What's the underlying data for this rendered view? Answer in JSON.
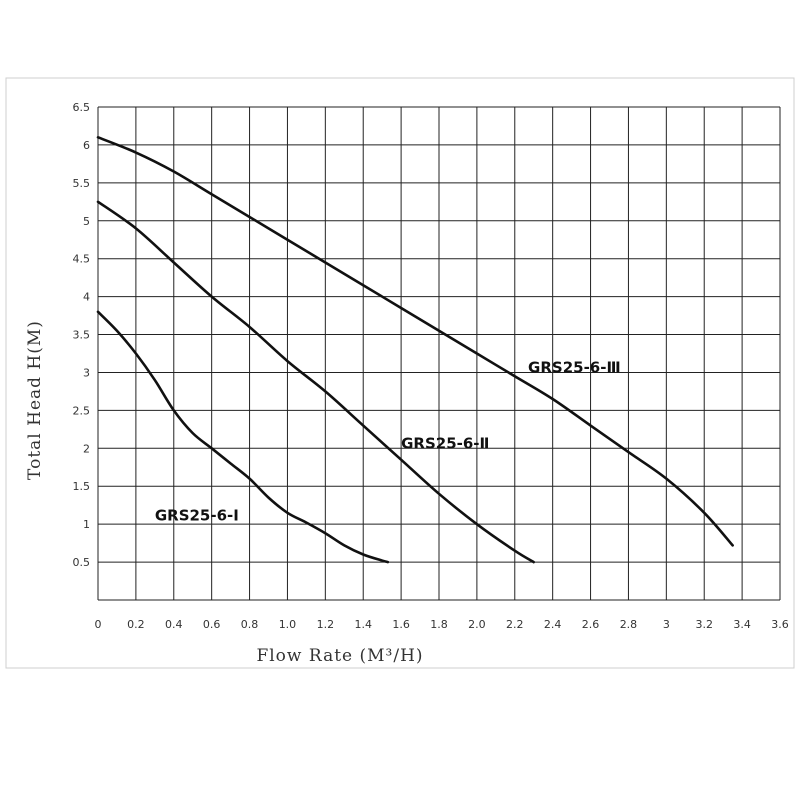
{
  "chart_data": {
    "type": "line",
    "title": "",
    "xlabel": "Flow Rate (M³/H)",
    "ylabel": "Total Head H(M)",
    "xlim": [
      0,
      3.6
    ],
    "ylim": [
      0,
      6.5
    ],
    "grid": true,
    "x_ticks": [
      "0",
      "0.2",
      "0.4",
      "0.6",
      "0.8",
      "1.0",
      "1.2",
      "1.4",
      "1.6",
      "1.8",
      "2.0",
      "2.2",
      "2.4",
      "2.6",
      "2.8",
      "3",
      "3.2",
      "3.4",
      "3.6"
    ],
    "y_ticks": [
      "6.5",
      "6",
      "5.5",
      "5",
      "4.5",
      "4",
      "3.5",
      "3",
      "2.5",
      "2",
      "1.5",
      "1",
      "0.5"
    ],
    "series": [
      {
        "name": "GRS25-6-Ⅰ",
        "label_at": [
          0.3,
          1.05
        ],
        "x": [
          0,
          0.1,
          0.2,
          0.3,
          0.4,
          0.5,
          0.6,
          0.7,
          0.8,
          0.9,
          1.0,
          1.1,
          1.2,
          1.3,
          1.4,
          1.5,
          1.53
        ],
        "y": [
          3.8,
          3.55,
          3.25,
          2.9,
          2.5,
          2.2,
          2.0,
          1.8,
          1.6,
          1.35,
          1.15,
          1.02,
          0.88,
          0.72,
          0.6,
          0.52,
          0.5
        ]
      },
      {
        "name": "GRS25-6-Ⅱ",
        "label_at": [
          1.6,
          2.0
        ],
        "x": [
          0,
          0.2,
          0.4,
          0.6,
          0.8,
          1.0,
          1.2,
          1.4,
          1.6,
          1.8,
          2.0,
          2.2,
          2.3
        ],
        "y": [
          5.25,
          4.9,
          4.45,
          4.0,
          3.6,
          3.15,
          2.75,
          2.3,
          1.85,
          1.4,
          1.0,
          0.65,
          0.5
        ]
      },
      {
        "name": "GRS25-6-Ⅲ",
        "label_at": [
          2.27,
          3.0
        ],
        "x": [
          0,
          0.2,
          0.4,
          0.6,
          0.8,
          1.0,
          1.2,
          1.4,
          1.6,
          1.8,
          2.0,
          2.2,
          2.4,
          2.6,
          2.8,
          3.0,
          3.2,
          3.35
        ],
        "y": [
          6.1,
          5.9,
          5.65,
          5.35,
          5.05,
          4.75,
          4.45,
          4.15,
          3.85,
          3.55,
          3.25,
          2.95,
          2.65,
          2.3,
          1.95,
          1.6,
          1.15,
          0.72
        ]
      }
    ]
  }
}
